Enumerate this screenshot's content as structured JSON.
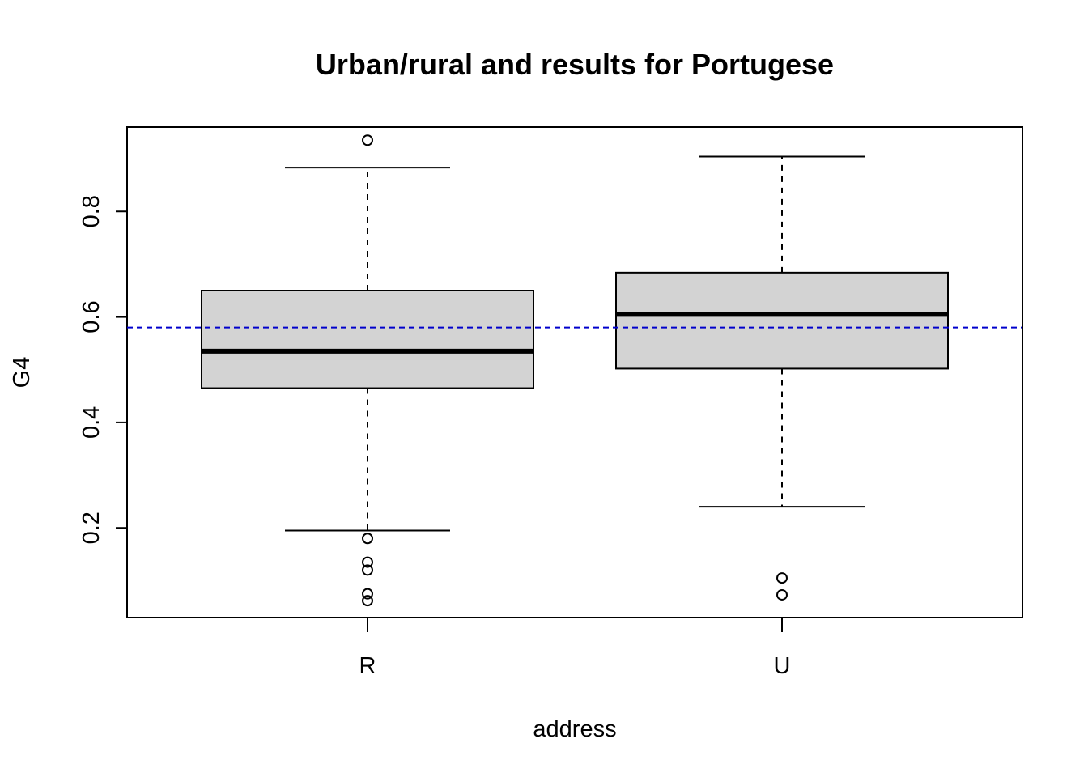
{
  "chart_data": {
    "type": "boxplot",
    "title": "Urban/rural and results for Portugese",
    "xlabel": "address",
    "ylabel": "G4",
    "categories": [
      "R",
      "U"
    ],
    "ylim": [
      0.03,
      0.96
    ],
    "yticks": [
      "0.2",
      "0.4",
      "0.6",
      "0.8"
    ],
    "boxes": [
      {
        "category": "R",
        "whisker_low": 0.195,
        "q1": 0.465,
        "median": 0.535,
        "q3": 0.65,
        "whisker_high": 0.883,
        "outliers": [
          0.935,
          0.18,
          0.135,
          0.12,
          0.075,
          0.062
        ]
      },
      {
        "category": "U",
        "whisker_low": 0.24,
        "q1": 0.502,
        "median": 0.605,
        "q3": 0.684,
        "whisker_high": 0.904,
        "outliers": [
          0.105,
          0.073
        ]
      }
    ],
    "reference_line": {
      "y": 0.58,
      "color": "#0000cc",
      "style": "dashed"
    },
    "box_fill": "#d3d3d3",
    "grid": false
  }
}
